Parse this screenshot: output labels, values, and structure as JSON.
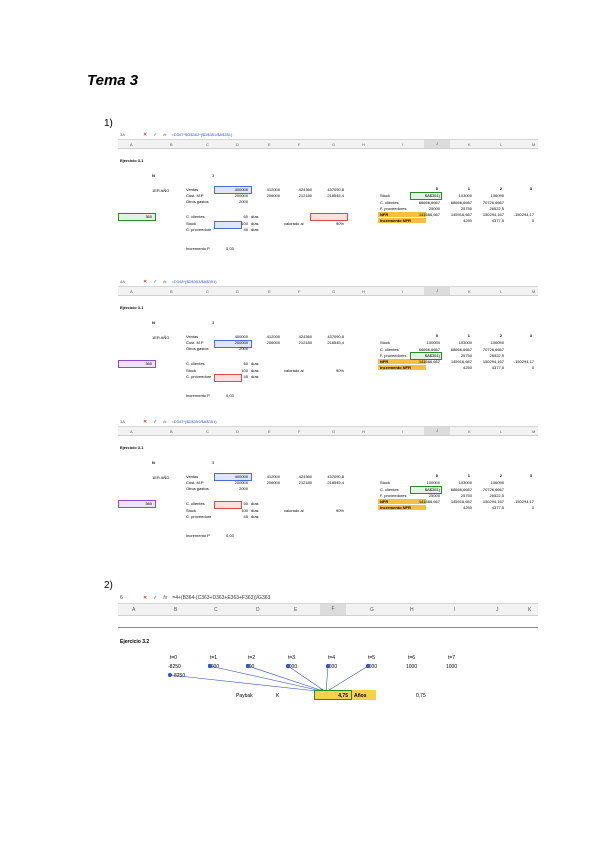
{
  "title": "Tema 3",
  "q1": "1)",
  "q2": "2)",
  "shots": [
    {
      "ref": "3A",
      "formula": "=D347*$G$362*($D$351/$A$351)",
      "heading": "Ejercicio 3.1",
      "n_label": "N",
      "n_val": "3",
      "period_label": "1ER AÑO",
      "rows_left": [
        "Ventas",
        "Cost. M.P",
        "Otros gastos",
        "C. clientes",
        "Stock",
        "C. proveedore"
      ],
      "vals_d": [
        "400000",
        "200000",
        "2000",
        "60",
        "100",
        "45"
      ],
      "dias": [
        "días",
        "días",
        "días"
      ],
      "ventas_row": [
        "412000",
        "424360",
        "437090,8"
      ],
      "cost_row": [
        "206000",
        "212180",
        "218545,4"
      ],
      "a_cell": "360",
      "valorado": "valorado al",
      "valorado_pct": "90%",
      "inc_label": "Incremento P",
      "inc_val": "0,03",
      "right_labels": [
        "Stock",
        "C. clientes",
        "F. proveedores",
        "NFR",
        "Incremento NFR"
      ],
      "right_hdr": [
        "0",
        "1",
        "2",
        "3"
      ],
      "r_stock": [
        "$A$351)",
        "103000",
        "106090"
      ],
      "r_clientes": [
        "66666,6667",
        "68666,6667",
        "70726,6667"
      ],
      "r_prov": [
        "25000",
        "25750",
        "26522,5"
      ],
      "r_nfr": [
        "141666,667",
        "145916,667",
        "150294,167",
        "-150294,17"
      ],
      "r_inc": [
        "4250",
        "4377,5",
        "0"
      ]
    },
    {
      "ref": "4A",
      "formula": "=D348*($D$353/$A$351)",
      "heading": "Ejercicio 3.1",
      "n_label": "N",
      "n_val": "3",
      "period_label": "1ER AÑO",
      "rows_left": [
        "Ventas",
        "Cost. M.P",
        "Otros gastos",
        "C. clientes",
        "Stock",
        "C. proveedore"
      ],
      "vals_d": [
        "400000",
        "200000",
        "2000",
        "60",
        "100",
        "45"
      ],
      "dias": [
        "días",
        "días",
        "días"
      ],
      "ventas_row": [
        "412000",
        "424360",
        "437090,8"
      ],
      "cost_row": [
        "206000",
        "212180",
        "218545,4"
      ],
      "a_cell": "360",
      "valorado": "valorado al",
      "valorado_pct": "90%",
      "inc_label": "Incremento P",
      "inc_val": "0,03",
      "right_labels": [
        "Stock",
        "C. clientes",
        "F. proveedores",
        "NFR",
        "Incremento NFR"
      ],
      "right_hdr": [
        "0",
        "1",
        "2",
        "3"
      ],
      "r_stock": [
        "100000",
        "103000",
        "106090"
      ],
      "r_clientes": [
        "66666,6667",
        "68666,6667",
        "70726,6667"
      ],
      "r_prov": [
        "$A$351)",
        "25750",
        "26522,5"
      ],
      "r_nfr": [
        "141666,667",
        "145916,667",
        "150294,167",
        "-150294,17"
      ],
      "r_inc": [
        "4250",
        "4377,5",
        "0"
      ]
    },
    {
      "ref": "3A",
      "formula": "=D347*($D$350/$A$351)",
      "heading": "Ejercicio 3.1",
      "n_label": "N",
      "n_val": "3",
      "period_label": "1ER AÑO",
      "rows_left": [
        "Ventas",
        "Cost. M.P",
        "Otros gastos",
        "C. clientes",
        "Stock",
        "C. proveedore"
      ],
      "vals_d": [
        "400000",
        "200000",
        "2000",
        "60",
        "100",
        "45"
      ],
      "dias": [
        "días",
        "días",
        "días"
      ],
      "ventas_row": [
        "412000",
        "424360",
        "437090,8"
      ],
      "cost_row": [
        "206000",
        "212180",
        "218545,4"
      ],
      "a_cell": "360",
      "valorado": "valorado al",
      "valorado_pct": "90%",
      "inc_label": "Incremento P",
      "inc_val": "0,03",
      "right_labels": [
        "Stock",
        "C. clientes",
        "F. proveedores",
        "NFR",
        "Incremento NFR"
      ],
      "right_hdr": [
        "0",
        "1",
        "2",
        "3"
      ],
      "r_stock": [
        "100000",
        "103000",
        "106090"
      ],
      "r_clientes": [
        "$A$351)",
        "68666,6667",
        "70726,6667"
      ],
      "r_prov": [
        "25000",
        "25750",
        "26522,5"
      ],
      "r_nfr": [
        "141666,667",
        "145916,667",
        "150294,167",
        "-150294,17"
      ],
      "r_inc": [
        "4250",
        "4377,5",
        "0"
      ]
    }
  ],
  "shot4": {
    "ref": "6",
    "formula": "=4+(B364-(C363+D363+E363+F363))/G363",
    "cols": [
      "A",
      "B",
      "C",
      "D",
      "E",
      "F",
      "G",
      "H",
      "I",
      "J",
      "K"
    ],
    "heading": "Ejercicio 3.2",
    "t_labels": [
      "t=0",
      "t=1",
      "t=2",
      "t=3",
      "t=4",
      "t=5",
      "t=6",
      "t=7"
    ],
    "t_vals": [
      "-8250",
      "5000",
      "500",
      "1000",
      "1000",
      "1000",
      "1000",
      "1000"
    ],
    "b364": "8250",
    "payback_label": "Paybak",
    "k_label": "K",
    "result": "4,75",
    "result_unit": "Años",
    "side_val": "0,75"
  },
  "col_letters": [
    "A",
    "B",
    "C",
    "D",
    "E",
    "F",
    "G",
    "H",
    "I",
    "J",
    "K",
    "L",
    "M"
  ]
}
